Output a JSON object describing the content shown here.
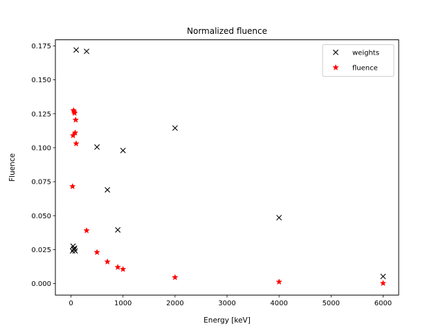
{
  "chart_data": {
    "type": "scatter",
    "title": "Normalized fluence",
    "xlabel": "Energy [keV]",
    "ylabel": "Fluence",
    "xlim": [
      -300,
      6300
    ],
    "ylim": [
      -0.0085,
      0.1795
    ],
    "x_ticks": [
      0,
      1000,
      2000,
      3000,
      4000,
      5000,
      6000
    ],
    "x_tick_labels": [
      "0",
      "1000",
      "2000",
      "3000",
      "4000",
      "5000",
      "6000"
    ],
    "y_ticks": [
      0.0,
      0.025,
      0.05,
      0.075,
      0.1,
      0.125,
      0.15,
      0.175
    ],
    "y_tick_labels": [
      "0.000",
      "0.025",
      "0.050",
      "0.075",
      "0.100",
      "0.125",
      "0.150",
      "0.175"
    ],
    "grid": false,
    "legend_position": "top-right",
    "series": [
      {
        "name": "weights",
        "marker": "x",
        "color": "#000000",
        "x": [
          30,
          40,
          50,
          60,
          70,
          80,
          100,
          300,
          500,
          700,
          900,
          1000,
          2000,
          4000,
          6000
        ],
        "y": [
          0.024,
          0.0275,
          0.0255,
          0.025,
          0.026,
          0.024,
          0.172,
          0.171,
          0.1005,
          0.069,
          0.0395,
          0.098,
          0.1145,
          0.0485,
          0.0052
        ]
      },
      {
        "name": "fluence",
        "marker": "star",
        "color": "#ff0000",
        "x": [
          30,
          40,
          50,
          60,
          70,
          80,
          90,
          100,
          300,
          500,
          700,
          900,
          1000,
          2000,
          4000,
          6000
        ],
        "y": [
          0.0715,
          0.109,
          0.1275,
          0.1265,
          0.1255,
          0.111,
          0.1205,
          0.103,
          0.039,
          0.023,
          0.016,
          0.012,
          0.0105,
          0.0045,
          0.0012,
          0.0002
        ]
      }
    ]
  }
}
